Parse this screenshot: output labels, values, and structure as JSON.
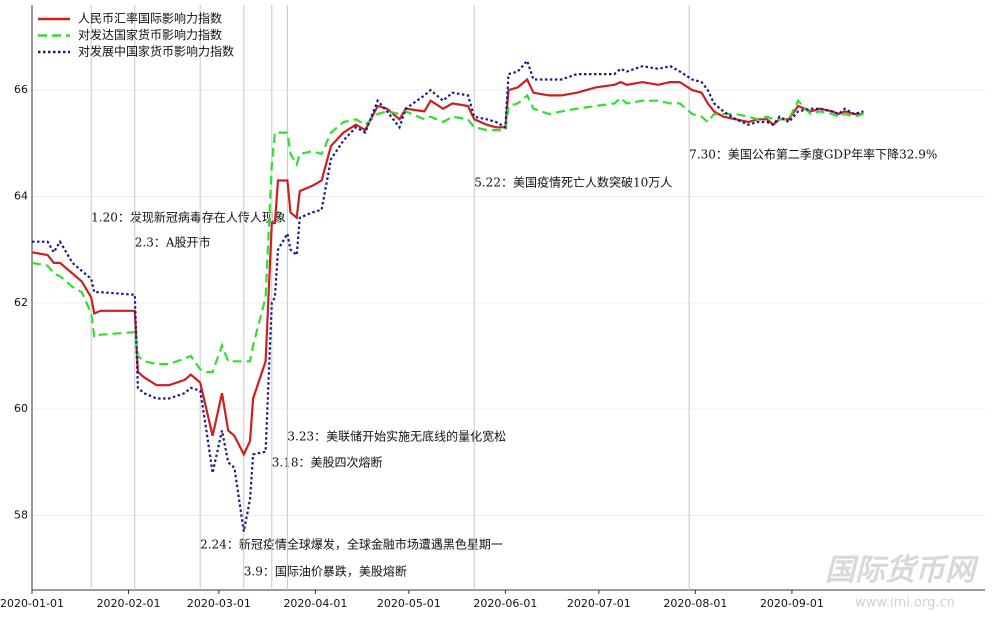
{
  "chart_data": {
    "type": "line",
    "x": [
      "2020-01-01",
      "2020-01-06",
      "2020-01-08",
      "2020-01-10",
      "2020-01-14",
      "2020-01-17",
      "2020-01-20",
      "2020-01-21",
      "2020-01-23",
      "2020-02-03",
      "2020-02-04",
      "2020-02-06",
      "2020-02-10",
      "2020-02-14",
      "2020-02-19",
      "2020-02-21",
      "2020-02-24",
      "2020-02-26",
      "2020-02-28",
      "2020-03-02",
      "2020-03-04",
      "2020-03-06",
      "2020-03-09",
      "2020-03-11",
      "2020-03-12",
      "2020-03-16",
      "2020-03-18",
      "2020-03-19",
      "2020-03-20",
      "2020-03-23",
      "2020-03-24",
      "2020-03-26",
      "2020-03-27",
      "2020-03-31",
      "2020-04-03",
      "2020-04-06",
      "2020-04-10",
      "2020-04-14",
      "2020-04-17",
      "2020-04-21",
      "2020-04-24",
      "2020-04-28",
      "2020-04-30",
      "2020-05-06",
      "2020-05-08",
      "2020-05-12",
      "2020-05-15",
      "2020-05-20",
      "2020-05-22",
      "2020-05-26",
      "2020-05-29",
      "2020-06-01",
      "2020-06-02",
      "2020-06-05",
      "2020-06-08",
      "2020-06-10",
      "2020-06-15",
      "2020-06-19",
      "2020-06-24",
      "2020-06-30",
      "2020-07-06",
      "2020-07-08",
      "2020-07-10",
      "2020-07-15",
      "2020-07-20",
      "2020-07-24",
      "2020-07-27",
      "2020-07-31",
      "2020-08-03",
      "2020-08-05",
      "2020-08-07",
      "2020-08-10",
      "2020-08-14",
      "2020-08-18",
      "2020-08-21",
      "2020-08-24",
      "2020-08-26",
      "2020-08-28",
      "2020-08-31",
      "2020-09-03",
      "2020-09-07",
      "2020-09-10",
      "2020-09-14",
      "2020-09-16",
      "2020-09-18",
      "2020-09-21",
      "2020-09-24"
    ],
    "series": [
      {
        "name": "人民币汇率国际影响力指数",
        "color": "#cc1f1f",
        "dash": "solid",
        "values": [
          62.95,
          62.9,
          62.75,
          62.75,
          62.55,
          62.4,
          62.1,
          61.8,
          61.85,
          61.85,
          60.7,
          60.6,
          60.45,
          60.45,
          60.55,
          60.65,
          60.5,
          60.0,
          59.5,
          60.3,
          59.6,
          59.5,
          59.15,
          59.4,
          60.2,
          60.9,
          63.5,
          63.5,
          64.3,
          64.3,
          63.7,
          63.6,
          64.1,
          64.2,
          64.3,
          64.95,
          65.2,
          65.35,
          65.25,
          65.7,
          65.65,
          65.45,
          65.65,
          65.6,
          65.8,
          65.65,
          65.75,
          65.7,
          65.45,
          65.35,
          65.3,
          65.3,
          66.0,
          66.05,
          66.2,
          65.95,
          65.9,
          65.9,
          65.95,
          66.05,
          66.1,
          66.15,
          66.1,
          66.15,
          66.1,
          66.15,
          66.15,
          66.0,
          65.95,
          65.75,
          65.6,
          65.5,
          65.45,
          65.4,
          65.45,
          65.45,
          65.35,
          65.45,
          65.45,
          65.7,
          65.6,
          65.65,
          65.6,
          65.55,
          65.6,
          65.55,
          65.55
        ]
      },
      {
        "name": "对发达国家货币影响力指数",
        "color": "#33dd33",
        "dash": "dashed",
        "values": [
          62.75,
          62.7,
          62.55,
          62.5,
          62.3,
          62.2,
          61.8,
          61.35,
          61.4,
          61.45,
          61.0,
          60.9,
          60.85,
          60.85,
          60.95,
          61.0,
          60.75,
          60.7,
          60.7,
          61.2,
          60.9,
          60.9,
          60.9,
          60.9,
          61.2,
          62.1,
          64.6,
          65.2,
          65.2,
          65.2,
          64.8,
          64.6,
          64.8,
          64.85,
          64.8,
          65.2,
          65.4,
          65.45,
          65.35,
          65.55,
          65.6,
          65.55,
          65.6,
          65.45,
          65.5,
          65.4,
          65.5,
          65.45,
          65.3,
          65.25,
          65.25,
          65.25,
          65.7,
          65.75,
          65.9,
          65.65,
          65.55,
          65.6,
          65.65,
          65.7,
          65.75,
          65.85,
          65.75,
          65.8,
          65.8,
          65.75,
          65.75,
          65.55,
          65.5,
          65.4,
          65.55,
          65.55,
          65.55,
          65.5,
          65.45,
          65.5,
          65.45,
          65.45,
          65.45,
          65.8,
          65.55,
          65.6,
          65.55,
          65.5,
          65.55,
          65.5,
          65.55
        ]
      },
      {
        "name": "对发展中国家货币影响力指数",
        "color": "#1a1a8c",
        "dash": "dotted",
        "values": [
          63.15,
          63.15,
          62.95,
          63.15,
          62.75,
          62.6,
          62.45,
          62.2,
          62.2,
          62.15,
          60.4,
          60.3,
          60.2,
          60.2,
          60.3,
          60.4,
          60.35,
          59.6,
          58.8,
          59.6,
          59.0,
          58.9,
          57.7,
          58.3,
          59.15,
          59.2,
          62.0,
          62.1,
          63.0,
          63.3,
          63.0,
          62.9,
          63.6,
          63.7,
          63.75,
          64.7,
          65.05,
          65.3,
          65.2,
          65.8,
          65.6,
          65.3,
          65.65,
          65.9,
          66.0,
          65.8,
          65.95,
          65.9,
          65.5,
          65.45,
          65.4,
          65.3,
          66.3,
          66.35,
          66.55,
          66.2,
          66.2,
          66.2,
          66.3,
          66.3,
          66.3,
          66.4,
          66.35,
          66.45,
          66.4,
          66.45,
          66.35,
          66.2,
          66.15,
          66.0,
          65.75,
          65.6,
          65.45,
          65.35,
          65.4,
          65.4,
          65.35,
          65.5,
          65.4,
          65.6,
          65.65,
          65.65,
          65.6,
          65.55,
          65.65,
          65.55,
          65.6
        ]
      }
    ],
    "xlim": [
      "2020-01-01",
      "2020-11-02"
    ],
    "xticks": [
      "2020-01-01",
      "2020-02-01",
      "2020-03-01",
      "2020-04-01",
      "2020-05-01",
      "2020-06-01",
      "2020-07-01",
      "2020-08-01",
      "2020-09-01"
    ],
    "ylim": [
      56.6,
      67.6
    ],
    "yticks": [
      58,
      60,
      62,
      64,
      66
    ],
    "grid": true,
    "legend": "upper-left",
    "annotations": [
      {
        "x": "2020-01-20",
        "text": "1.20：发现新冠病毒存在人传人现象"
      },
      {
        "x": "2020-02-03",
        "text": "2.3：A股开市"
      },
      {
        "x": "2020-02-24",
        "text": "2.24：新冠疫情全球爆发，全球金融市场遭遇黑色星期一"
      },
      {
        "x": "2020-03-09",
        "text": "3.9：国际油价暴跌，美股熔断"
      },
      {
        "x": "2020-03-18",
        "text": "3.18：美股四次熔断"
      },
      {
        "x": "2020-03-23",
        "text": "3.23：美联储开始实施无底线的量化宽松"
      },
      {
        "x": "2020-05-22",
        "text": "5.22：美国疫情死亡人数突破10万人"
      },
      {
        "x": "2020-07-30",
        "text": "7.30：美国公布第二季度GDP年率下降32.9%"
      }
    ],
    "watermark": "国际货币网",
    "watermark_url": "www.imi.org.cn"
  }
}
